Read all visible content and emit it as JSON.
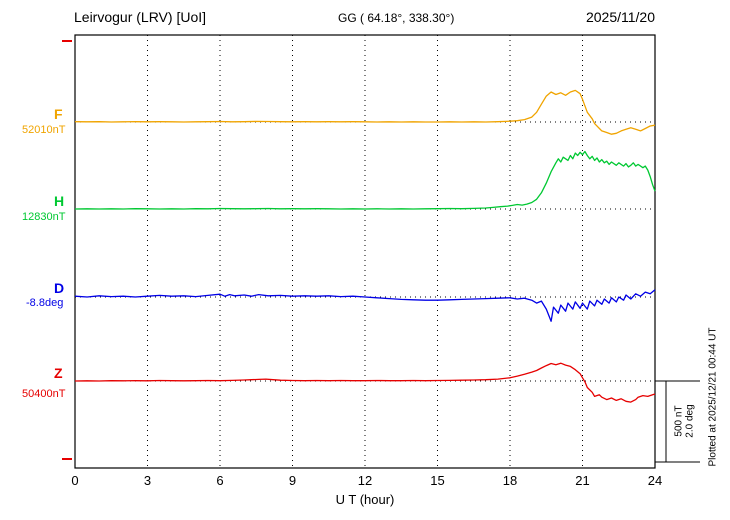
{
  "header": {
    "station": "Leirvogur (LRV)  [UoI]",
    "coords": "GG ( 64.18°, 338.30°)",
    "date": "2025/11/20"
  },
  "footer": {
    "xlabel": "U T (hour)"
  },
  "scale_bar": {
    "line1": "500 nT",
    "line2": "2.0 deg"
  },
  "plotted_at": "Plotted at 2025/12/21 00:44 UT",
  "chart_data": {
    "type": "line",
    "title": "Leirvogur (LRV) [UoI] magnetogram",
    "date": "2025/11/20",
    "xlabel": "U T (hour)",
    "xlim": [
      0,
      24
    ],
    "x_ticks": [
      0,
      3,
      6,
      9,
      12,
      15,
      18,
      21,
      24
    ],
    "gridlines": {
      "vertical_every_h": 3,
      "style": "dotted",
      "baselines": "dotted horizontal per trace"
    },
    "scale": {
      "nT_per_div": 500,
      "deg_per_div": 2.0
    },
    "series": [
      {
        "name": "F",
        "unit": "nT",
        "baseline_value": 52010,
        "baseline_label": "52010nT",
        "color": "#f0a400",
        "points_are_offsets_from_baseline": true,
        "points": [
          [
            0,
            2
          ],
          [
            0.5,
            1
          ],
          [
            1,
            2
          ],
          [
            1.5,
            0
          ],
          [
            2,
            1
          ],
          [
            2.5,
            2
          ],
          [
            3,
            1
          ],
          [
            3.5,
            2
          ],
          [
            4,
            1
          ],
          [
            4.5,
            0
          ],
          [
            5,
            1
          ],
          [
            5.5,
            2
          ],
          [
            6,
            3
          ],
          [
            6.5,
            1
          ],
          [
            7,
            2
          ],
          [
            7.5,
            4
          ],
          [
            8,
            3
          ],
          [
            8.5,
            2
          ],
          [
            9,
            1
          ],
          [
            9.5,
            2
          ],
          [
            10,
            1
          ],
          [
            10.5,
            2
          ],
          [
            11,
            1
          ],
          [
            11.5,
            2
          ],
          [
            12,
            1
          ],
          [
            12.5,
            0
          ],
          [
            13,
            1
          ],
          [
            13.5,
            0
          ],
          [
            14,
            1
          ],
          [
            14.5,
            0
          ],
          [
            15,
            0
          ],
          [
            15.5,
            1
          ],
          [
            16,
            0
          ],
          [
            16.5,
            1
          ],
          [
            17,
            0
          ],
          [
            17.5,
            2
          ],
          [
            18,
            5
          ],
          [
            18.3,
            8
          ],
          [
            18.6,
            15
          ],
          [
            18.9,
            30
          ],
          [
            19.1,
            60
          ],
          [
            19.3,
            110
          ],
          [
            19.5,
            160
          ],
          [
            19.7,
            185
          ],
          [
            19.9,
            170
          ],
          [
            20.1,
            180
          ],
          [
            20.3,
            165
          ],
          [
            20.5,
            185
          ],
          [
            20.7,
            195
          ],
          [
            20.9,
            175
          ],
          [
            21,
            140
          ],
          [
            21.1,
            100
          ],
          [
            21.2,
            60
          ],
          [
            21.4,
            20
          ],
          [
            21.5,
            -10
          ],
          [
            21.7,
            -40
          ],
          [
            21.8,
            -55
          ],
          [
            22,
            -65
          ],
          [
            22.2,
            -75
          ],
          [
            22.4,
            -70
          ],
          [
            22.6,
            -55
          ],
          [
            22.8,
            -45
          ],
          [
            23,
            -35
          ],
          [
            23.2,
            -45
          ],
          [
            23.4,
            -55
          ],
          [
            23.6,
            -40
          ],
          [
            23.8,
            -25
          ],
          [
            24,
            -20
          ]
        ]
      },
      {
        "name": "H",
        "unit": "nT",
        "baseline_value": 12830,
        "baseline_label": "12830nT",
        "color": "#00c832",
        "points_are_offsets_from_baseline": true,
        "points": [
          [
            0,
            0
          ],
          [
            0.5,
            1
          ],
          [
            1,
            0
          ],
          [
            1.5,
            1
          ],
          [
            2,
            0
          ],
          [
            2.5,
            2
          ],
          [
            3,
            1
          ],
          [
            3.5,
            0
          ],
          [
            4,
            1
          ],
          [
            4.5,
            0
          ],
          [
            5,
            2
          ],
          [
            5.5,
            1
          ],
          [
            6,
            3
          ],
          [
            6.5,
            2
          ],
          [
            7,
            1
          ],
          [
            7.5,
            2
          ],
          [
            8,
            3
          ],
          [
            8.5,
            1
          ],
          [
            9,
            2
          ],
          [
            9.5,
            1
          ],
          [
            10,
            2
          ],
          [
            10.5,
            1
          ],
          [
            11,
            0
          ],
          [
            11.5,
            1
          ],
          [
            12,
            0
          ],
          [
            12.5,
            1
          ],
          [
            13,
            0
          ],
          [
            13.5,
            1
          ],
          [
            14,
            0
          ],
          [
            14.5,
            1
          ],
          [
            15,
            2
          ],
          [
            15.5,
            3
          ],
          [
            16,
            2
          ],
          [
            16.5,
            4
          ],
          [
            17,
            6
          ],
          [
            17.3,
            10
          ],
          [
            17.6,
            14
          ],
          [
            17.9,
            18
          ],
          [
            18.1,
            22
          ],
          [
            18.3,
            28
          ],
          [
            18.5,
            24
          ],
          [
            18.7,
            30
          ],
          [
            18.9,
            40
          ],
          [
            19.1,
            60
          ],
          [
            19.3,
            100
          ],
          [
            19.5,
            160
          ],
          [
            19.7,
            230
          ],
          [
            19.9,
            285
          ],
          [
            20,
            310
          ],
          [
            20.1,
            290
          ],
          [
            20.2,
            320
          ],
          [
            20.4,
            300
          ],
          [
            20.5,
            330
          ],
          [
            20.6,
            310
          ],
          [
            20.7,
            345
          ],
          [
            20.8,
            330
          ],
          [
            20.9,
            350
          ],
          [
            21,
            335
          ],
          [
            21.1,
            355
          ],
          [
            21.2,
            330
          ],
          [
            21.3,
            310
          ],
          [
            21.4,
            325
          ],
          [
            21.5,
            300
          ],
          [
            21.6,
            315
          ],
          [
            21.7,
            290
          ],
          [
            21.8,
            305
          ],
          [
            21.9,
            285
          ],
          [
            22,
            295
          ],
          [
            22.1,
            275
          ],
          [
            22.2,
            290
          ],
          [
            22.4,
            270
          ],
          [
            22.5,
            285
          ],
          [
            22.7,
            265
          ],
          [
            22.8,
            280
          ],
          [
            22.9,
            260
          ],
          [
            23,
            270
          ],
          [
            23.1,
            285
          ],
          [
            23.2,
            265
          ],
          [
            23.3,
            275
          ],
          [
            23.5,
            255
          ],
          [
            23.6,
            265
          ],
          [
            23.7,
            240
          ],
          [
            23.8,
            200
          ],
          [
            23.9,
            150
          ],
          [
            24,
            110
          ]
        ]
      },
      {
        "name": "D",
        "unit": "deg",
        "baseline_value": -8.8,
        "baseline_label": "-8.8deg",
        "color": "#0000e6",
        "points_are_offsets_from_baseline": true,
        "points": [
          [
            0,
            0.02
          ],
          [
            0.5,
            0
          ],
          [
            1,
            0.03
          ],
          [
            1.5,
            0.01
          ],
          [
            2,
            0.02
          ],
          [
            2.5,
            0
          ],
          [
            3,
            0.02
          ],
          [
            3.5,
            0.04
          ],
          [
            4,
            0.02
          ],
          [
            4.5,
            0.03
          ],
          [
            5,
            0.01
          ],
          [
            5.5,
            0.04
          ],
          [
            6,
            0.07
          ],
          [
            6.2,
            0.02
          ],
          [
            6.4,
            0.06
          ],
          [
            6.6,
            0.03
          ],
          [
            7,
            0.05
          ],
          [
            7.3,
            0.02
          ],
          [
            7.6,
            0.06
          ],
          [
            8,
            0.03
          ],
          [
            8.5,
            0.04
          ],
          [
            9,
            0.02
          ],
          [
            9.5,
            0.03
          ],
          [
            10,
            0.02
          ],
          [
            10.5,
            0.03
          ],
          [
            11,
            0.01
          ],
          [
            11.5,
            0.02
          ],
          [
            12,
            0
          ],
          [
            12.5,
            -0.02
          ],
          [
            13,
            -0.04
          ],
          [
            13.5,
            -0.06
          ],
          [
            14,
            -0.07
          ],
          [
            14.5,
            -0.08
          ],
          [
            15,
            -0.08
          ],
          [
            15.5,
            -0.07
          ],
          [
            16,
            -0.06
          ],
          [
            16.5,
            -0.05
          ],
          [
            17,
            -0.04
          ],
          [
            17.5,
            -0.03
          ],
          [
            18,
            -0.02
          ],
          [
            18.3,
            -0.05
          ],
          [
            18.6,
            -0.03
          ],
          [
            18.9,
            -0.08
          ],
          [
            19.1,
            -0.15
          ],
          [
            19.3,
            -0.1
          ],
          [
            19.5,
            -0.3
          ],
          [
            19.7,
            -0.6
          ],
          [
            19.8,
            -0.25
          ],
          [
            20,
            -0.4
          ],
          [
            20.1,
            -0.2
          ],
          [
            20.3,
            -0.35
          ],
          [
            20.4,
            -0.15
          ],
          [
            20.6,
            -0.3
          ],
          [
            20.7,
            -0.12
          ],
          [
            20.9,
            -0.28
          ],
          [
            21,
            -0.15
          ],
          [
            21.2,
            -0.3
          ],
          [
            21.3,
            -0.1
          ],
          [
            21.5,
            -0.22
          ],
          [
            21.6,
            -0.08
          ],
          [
            21.8,
            -0.18
          ],
          [
            21.9,
            -0.05
          ],
          [
            22.1,
            -0.15
          ],
          [
            22.2,
            -0.02
          ],
          [
            22.4,
            -0.12
          ],
          [
            22.5,
            0
          ],
          [
            22.7,
            -0.08
          ],
          [
            22.8,
            0.05
          ],
          [
            23,
            -0.05
          ],
          [
            23.2,
            0.08
          ],
          [
            23.4,
            0.02
          ],
          [
            23.6,
            0.12
          ],
          [
            23.8,
            0.08
          ],
          [
            24,
            0.18
          ]
        ]
      },
      {
        "name": "Z",
        "unit": "nT",
        "baseline_value": 50400,
        "baseline_label": "50400nT",
        "color": "#e60000",
        "points_are_offsets_from_baseline": true,
        "points": [
          [
            0,
            0
          ],
          [
            0.5,
            1
          ],
          [
            1,
            0
          ],
          [
            1.5,
            2
          ],
          [
            2,
            1
          ],
          [
            2.5,
            2
          ],
          [
            3,
            1
          ],
          [
            3.5,
            3
          ],
          [
            4,
            2
          ],
          [
            4.5,
            1
          ],
          [
            5,
            2
          ],
          [
            5.5,
            3
          ],
          [
            6,
            2
          ],
          [
            6.5,
            4
          ],
          [
            7,
            6
          ],
          [
            7.3,
            8
          ],
          [
            7.6,
            10
          ],
          [
            7.9,
            12
          ],
          [
            8.2,
            8
          ],
          [
            8.5,
            5
          ],
          [
            9,
            3
          ],
          [
            9.5,
            2
          ],
          [
            10,
            3
          ],
          [
            10.5,
            2
          ],
          [
            11,
            3
          ],
          [
            11.5,
            2
          ],
          [
            12,
            2
          ],
          [
            12.5,
            3
          ],
          [
            13,
            2
          ],
          [
            13.5,
            2
          ],
          [
            14,
            3
          ],
          [
            14.5,
            2
          ],
          [
            15,
            3
          ],
          [
            15.5,
            4
          ],
          [
            16,
            5
          ],
          [
            16.5,
            6
          ],
          [
            17,
            8
          ],
          [
            17.5,
            12
          ],
          [
            18,
            20
          ],
          [
            18.3,
            30
          ],
          [
            18.6,
            42
          ],
          [
            18.9,
            55
          ],
          [
            19.1,
            65
          ],
          [
            19.3,
            80
          ],
          [
            19.5,
            95
          ],
          [
            19.7,
            108
          ],
          [
            19.9,
            100
          ],
          [
            20.1,
            110
          ],
          [
            20.3,
            98
          ],
          [
            20.5,
            90
          ],
          [
            20.7,
            70
          ],
          [
            20.9,
            45
          ],
          [
            21,
            20
          ],
          [
            21.1,
            -5
          ],
          [
            21.2,
            -40
          ],
          [
            21.4,
            -70
          ],
          [
            21.5,
            -95
          ],
          [
            21.7,
            -85
          ],
          [
            21.8,
            -100
          ],
          [
            22,
            -115
          ],
          [
            22.2,
            -105
          ],
          [
            22.4,
            -120
          ],
          [
            22.6,
            -110
          ],
          [
            22.8,
            -125
          ],
          [
            23,
            -130
          ],
          [
            23.2,
            -115
          ],
          [
            23.3,
            -100
          ],
          [
            23.5,
            -90
          ],
          [
            23.7,
            -95
          ],
          [
            23.9,
            -85
          ],
          [
            24,
            -80
          ]
        ]
      }
    ]
  }
}
